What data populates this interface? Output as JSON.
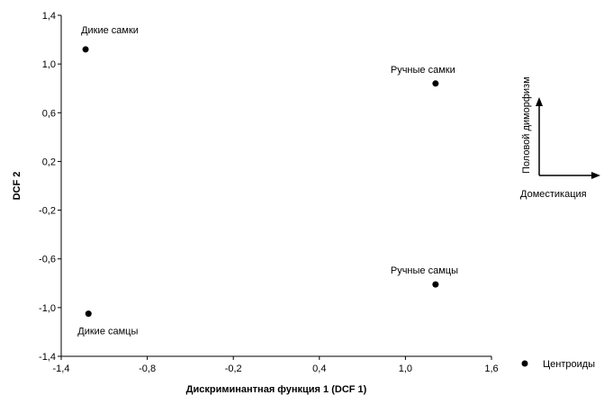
{
  "chart_data": {
    "type": "scatter",
    "title": "",
    "xlabel": "Дискриминантная функция 1 (DCF 1)",
    "ylabel": "DCF 2",
    "xlim": [
      -1.4,
      1.6
    ],
    "ylim": [
      -1.4,
      1.4
    ],
    "xticks": [
      {
        "value": -1.4,
        "label": "-1,4"
      },
      {
        "value": -0.8,
        "label": "-0,8"
      },
      {
        "value": -0.2,
        "label": "-0,2"
      },
      {
        "value": 0.4,
        "label": "0,4"
      },
      {
        "value": 1.0,
        "label": "1,0"
      },
      {
        "value": 1.6,
        "label": "1,6"
      }
    ],
    "yticks": [
      {
        "value": 1.4,
        "label": "1,4"
      },
      {
        "value": 1.0,
        "label": "1,0"
      },
      {
        "value": 0.6,
        "label": "0,6"
      },
      {
        "value": 0.2,
        "label": "0,2"
      },
      {
        "value": -0.2,
        "label": "-0,2"
      },
      {
        "value": -0.6,
        "label": "-0,6"
      },
      {
        "value": -1.0,
        "label": "-1,0"
      },
      {
        "value": -1.4,
        "label": "-1,4"
      }
    ],
    "points": [
      {
        "label": "Дикие самки",
        "x": -1.23,
        "y": 1.12
      },
      {
        "label": "Ручные самки",
        "x": 1.21,
        "y": 0.84
      },
      {
        "label": "Ручные самцы",
        "x": 1.21,
        "y": -0.81
      },
      {
        "label": "Дикие самцы",
        "x": -1.21,
        "y": -1.05
      }
    ],
    "legend": {
      "position": "bottom-right",
      "entries": [
        "Центроиды"
      ]
    },
    "grid": false,
    "inset": {
      "vertical_label": "Половой диморфизм",
      "horizontal_label": "Доместикация"
    }
  }
}
